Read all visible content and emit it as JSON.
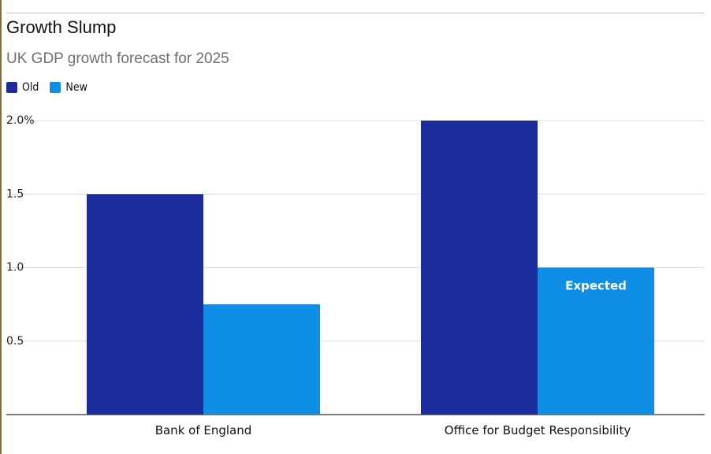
{
  "title": "Growth Slump",
  "subtitle": "UK GDP growth forecast for 2025",
  "colors": {
    "old": "#1c2c9c",
    "new": "#0f8ee6",
    "grid": "#dddddd",
    "axis": "#333333"
  },
  "chart_data": {
    "type": "bar",
    "title": "Growth Slump",
    "subtitle": "UK GDP growth forecast for 2025",
    "categories": [
      "Bank of England",
      "Office for Budget Responsibility"
    ],
    "series": [
      {
        "name": "Old",
        "values": [
          1.5,
          2.0
        ]
      },
      {
        "name": "New",
        "values": [
          0.75,
          1.0
        ]
      }
    ],
    "ylim": [
      0,
      2.0
    ],
    "yticks": [
      {
        "value": 0.5,
        "label": "0.5"
      },
      {
        "value": 1.0,
        "label": "1.0"
      },
      {
        "value": 1.5,
        "label": "1.5"
      },
      {
        "value": 2.0,
        "label": "2.0%"
      }
    ],
    "grid": true,
    "legend": "top-left",
    "annotations": [
      {
        "category": "Office for Budget Responsibility",
        "series": "New",
        "text": "Expected"
      }
    ]
  }
}
